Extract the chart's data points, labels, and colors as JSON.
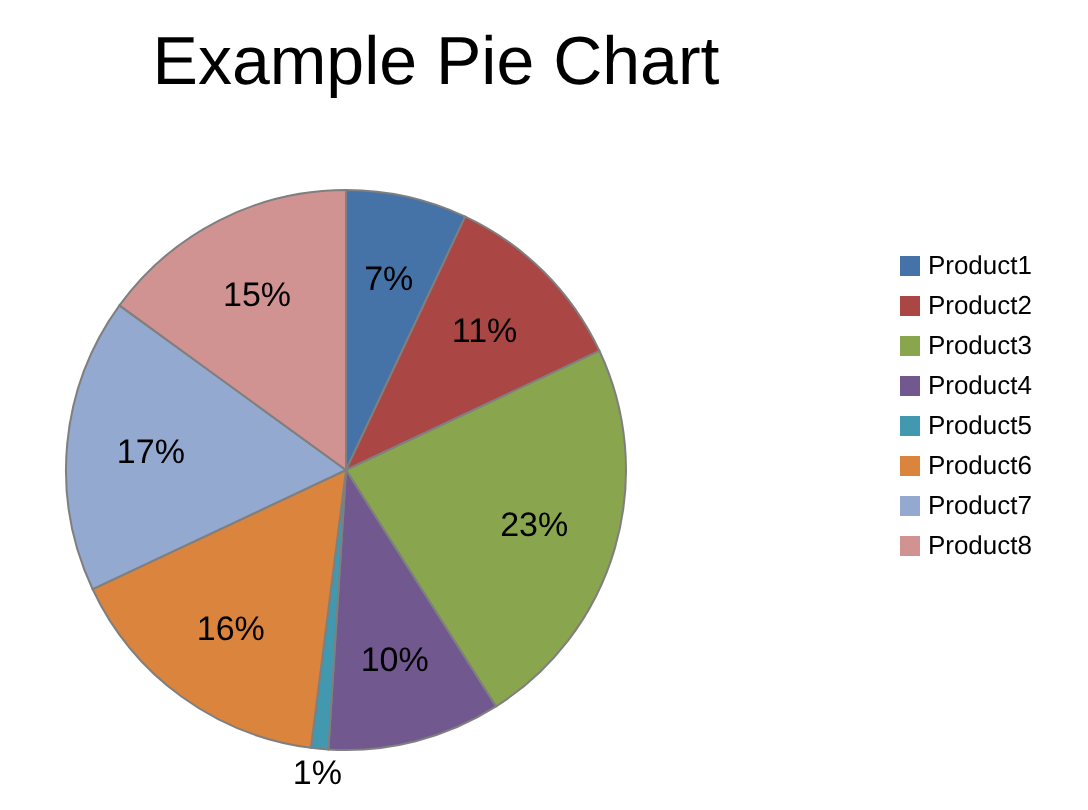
{
  "chart_data": {
    "type": "pie",
    "title": "Example Pie Chart",
    "categories": [
      "Product1",
      "Product2",
      "Product3",
      "Product4",
      "Product5",
      "Product6",
      "Product7",
      "Product8"
    ],
    "values": [
      7,
      11,
      23,
      10,
      1,
      16,
      17,
      15
    ],
    "value_labels": [
      "7%",
      "11%",
      "23%",
      "10%",
      "1%",
      "16%",
      "17%",
      "15%"
    ],
    "colors": [
      "#4572a7",
      "#aa4643",
      "#89a54e",
      "#71588f",
      "#4198af",
      "#db843d",
      "#93a9cf",
      "#d19392"
    ],
    "legend": "right"
  }
}
